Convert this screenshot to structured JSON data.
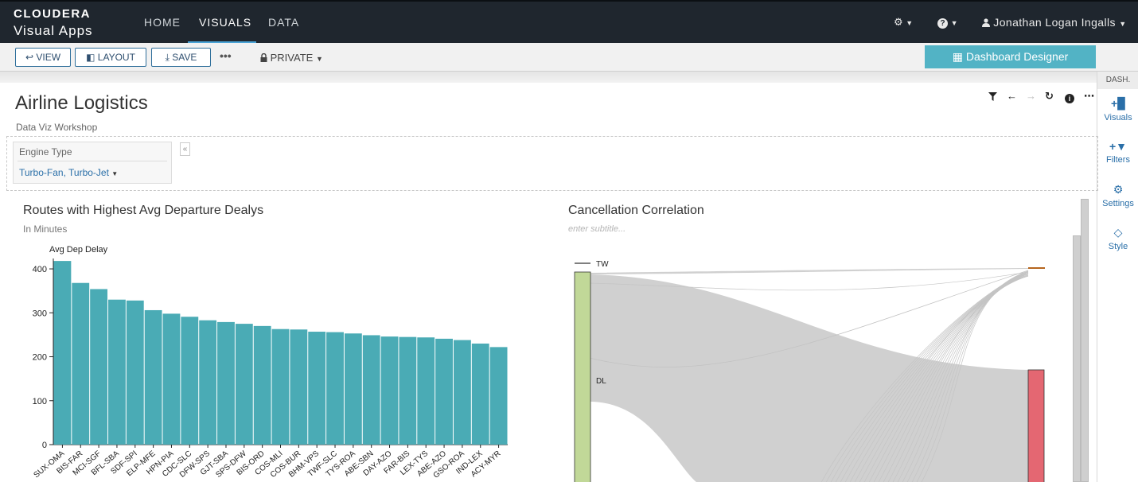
{
  "app": {
    "brand_line1": "CLOUDERA",
    "brand_line2": "Visual Apps"
  },
  "nav": {
    "items": [
      {
        "label": "HOME",
        "active": false
      },
      {
        "label": "VISUALS",
        "active": true
      },
      {
        "label": "DATA",
        "active": false
      }
    ],
    "settings_icon": "gear-icon",
    "help_icon": "question-icon",
    "user_icon": "user-icon",
    "user_name": "Jonathan Logan Ingalls"
  },
  "toolbar": {
    "view_label": "VIEW",
    "layout_label": "LAYOUT",
    "save_label": "SAVE",
    "more_label": "•••",
    "privacy_label": "PRIVATE",
    "designer_label": "Dashboard Designer"
  },
  "side_panel": {
    "header": "DASH.",
    "items": [
      {
        "label": "Visuals",
        "icon": "add-chart-icon"
      },
      {
        "label": "Filters",
        "icon": "add-filter-icon"
      },
      {
        "label": "Settings",
        "icon": "gears-icon"
      },
      {
        "label": "Style",
        "icon": "diamond-icon"
      }
    ]
  },
  "dashboard": {
    "title": "Airline Logistics",
    "subtitle": "Data Viz Workshop",
    "header_icons": [
      "filter-icon",
      "back-arrow-icon",
      "forward-arrow-icon",
      "refresh-icon",
      "info-icon",
      "more-icon"
    ]
  },
  "filter": {
    "label": "Engine Type",
    "value": "Turbo-Fan, Turbo-Jet"
  },
  "visual1": {
    "title": "Routes with Highest Avg Departure Dealys",
    "subtitle": "In Minutes"
  },
  "visual2": {
    "title": "Cancellation Correlation",
    "subtitle_placeholder": "enter subtitle..."
  },
  "colors": {
    "bar": "#4aabb5",
    "sankey_left": "#c1d898",
    "sankey_right": "#e46772",
    "sankey_link": "#d0d0d0",
    "accent": "#52b3c5"
  },
  "chart_data": [
    {
      "type": "bar",
      "title": "Routes with Highest Avg Departure Dealys",
      "subtitle": "In Minutes",
      "ylabel": "Avg Dep Delay",
      "xlabel": "",
      "ylim": [
        0,
        420
      ],
      "yticks": [
        0,
        100,
        200,
        300,
        400
      ],
      "grid": false,
      "categories": [
        "SUX-OMA",
        "BIS-FAR",
        "MCI-SGF",
        "BFL-SBA",
        "SDF-SPI",
        "ELP-MFE",
        "HPN-PIA",
        "CDC-SLC",
        "DFW-SPS",
        "GJT-SBA",
        "SPS-DFW",
        "BIS-ORD",
        "COS-MLI",
        "COS-BUR",
        "BHM-VPS",
        "TWF-SLC",
        "TYS-ROA",
        "ABE-SBN",
        "DAY-AZO",
        "FAR-BIS",
        "LEX-TYS",
        "ABE-AZO",
        "GSO-ROA",
        "IND-LEX",
        "ACY-MYR"
      ],
      "values": [
        418,
        368,
        354,
        330,
        328,
        306,
        298,
        291,
        283,
        279,
        275,
        270,
        263,
        262,
        257,
        256,
        253,
        249,
        246,
        245,
        244,
        241,
        238,
        230,
        222
      ]
    },
    {
      "type": "sankey",
      "title": "Cancellation Correlation",
      "subtitle": "",
      "nodes_left": [
        "TW",
        "DL"
      ],
      "nodes_right": [
        "",
        ""
      ]
    }
  ]
}
